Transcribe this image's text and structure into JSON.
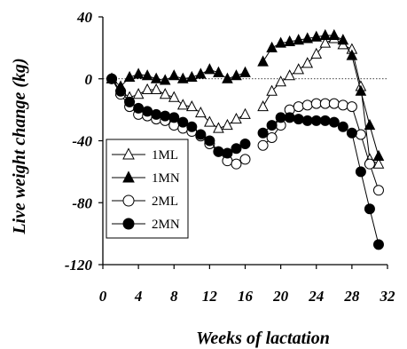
{
  "chart_data": {
    "type": "line",
    "title": "",
    "xlabel": "Weeks of lactation",
    "ylabel": "Live weight change (kg)",
    "xlim": [
      0,
      32
    ],
    "ylim": [
      -120,
      40
    ],
    "xticks": [
      0,
      4,
      8,
      12,
      16,
      20,
      24,
      28,
      32
    ],
    "yticks": [
      40,
      0,
      -40,
      -80,
      -120
    ],
    "reference_line": 0,
    "grid": false,
    "legend_position": "bottom-left",
    "series": [
      {
        "name": "1ML",
        "marker": "open-triangle",
        "x": [
          1,
          2,
          3,
          4,
          5,
          6,
          7,
          8,
          9,
          10,
          11,
          12,
          13,
          14,
          15,
          16,
          18,
          19,
          20,
          21,
          22,
          23,
          24,
          25,
          26,
          27,
          28,
          29,
          30,
          31
        ],
        "y": [
          0,
          -8,
          -12,
          -10,
          -7,
          -7,
          -10,
          -12,
          -17,
          -18,
          -22,
          -28,
          -32,
          -30,
          -26,
          -23,
          -18,
          -8,
          -2,
          2,
          6,
          10,
          16,
          23,
          26,
          22,
          19,
          -5,
          -52,
          -55
        ]
      },
      {
        "name": "1MN",
        "marker": "filled-triangle",
        "x": [
          1,
          2,
          3,
          4,
          5,
          6,
          7,
          8,
          9,
          10,
          11,
          12,
          13,
          14,
          15,
          16,
          18,
          19,
          20,
          21,
          22,
          23,
          24,
          25,
          26,
          27,
          28,
          29,
          30,
          31
        ],
        "y": [
          0,
          -5,
          1,
          3,
          2,
          0,
          -1,
          2,
          0,
          1,
          3,
          6,
          4,
          0,
          2,
          4,
          11,
          20,
          23,
          24,
          25,
          26,
          27,
          28,
          28,
          25,
          15,
          -8,
          -30,
          -50
        ]
      },
      {
        "name": "2ML",
        "marker": "open-circle",
        "x": [
          1,
          2,
          3,
          4,
          5,
          6,
          7,
          8,
          9,
          10,
          11,
          12,
          13,
          14,
          15,
          16,
          18,
          19,
          20,
          21,
          22,
          23,
          24,
          25,
          26,
          27,
          28,
          29,
          30,
          31
        ],
        "y": [
          0,
          -10,
          -18,
          -23,
          -24,
          -26,
          -27,
          -30,
          -32,
          -34,
          -37,
          -42,
          -47,
          -53,
          -55,
          -52,
          -43,
          -38,
          -30,
          -20,
          -18,
          -17,
          -16,
          -16,
          -16,
          -17,
          -18,
          -36,
          -55,
          -72
        ]
      },
      {
        "name": "2MN",
        "marker": "filled-circle",
        "x": [
          1,
          2,
          3,
          4,
          5,
          6,
          7,
          8,
          9,
          10,
          11,
          12,
          13,
          14,
          15,
          16,
          18,
          19,
          20,
          21,
          22,
          23,
          24,
          25,
          26,
          27,
          28,
          29,
          30,
          31
        ],
        "y": [
          0,
          -8,
          -15,
          -19,
          -21,
          -23,
          -24,
          -25,
          -28,
          -31,
          -36,
          -40,
          -47,
          -48,
          -45,
          -42,
          -35,
          -30,
          -25,
          -25,
          -26,
          -27,
          -27,
          -27,
          -28,
          -31,
          -35,
          -60,
          -84,
          -107
        ]
      }
    ]
  }
}
